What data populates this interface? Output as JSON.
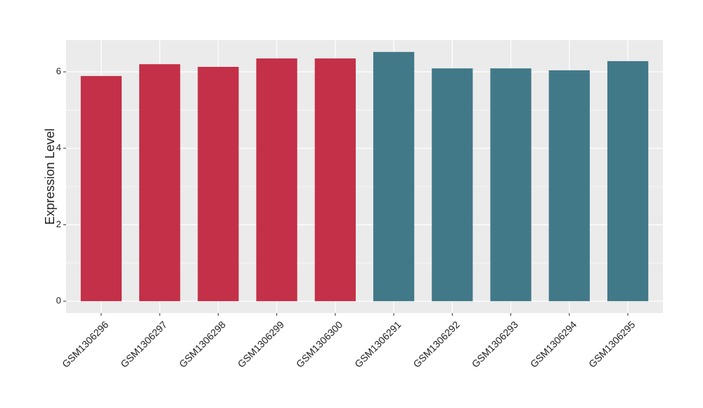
{
  "chart_data": {
    "type": "bar",
    "y_label": "Expression Level",
    "categories": [
      "GSM1306296",
      "GSM1306297",
      "GSM1306298",
      "GSM1306299",
      "GSM1306300",
      "GSM1306291",
      "GSM1306292",
      "GSM1306293",
      "GSM1306294",
      "GSM1306295"
    ],
    "values": [
      5.89,
      6.2,
      6.13,
      6.35,
      6.35,
      6.52,
      6.09,
      6.09,
      6.04,
      6.28
    ],
    "colors": [
      "#c33047",
      "#c33047",
      "#c33047",
      "#c33047",
      "#c33047",
      "#427989",
      "#427989",
      "#427989",
      "#427989",
      "#427989"
    ],
    "ylim": [
      -0.31,
      6.83
    ],
    "yticks": [
      0,
      2,
      4,
      6
    ],
    "minor_yticks": [
      1,
      3,
      5
    ],
    "grid": true
  }
}
